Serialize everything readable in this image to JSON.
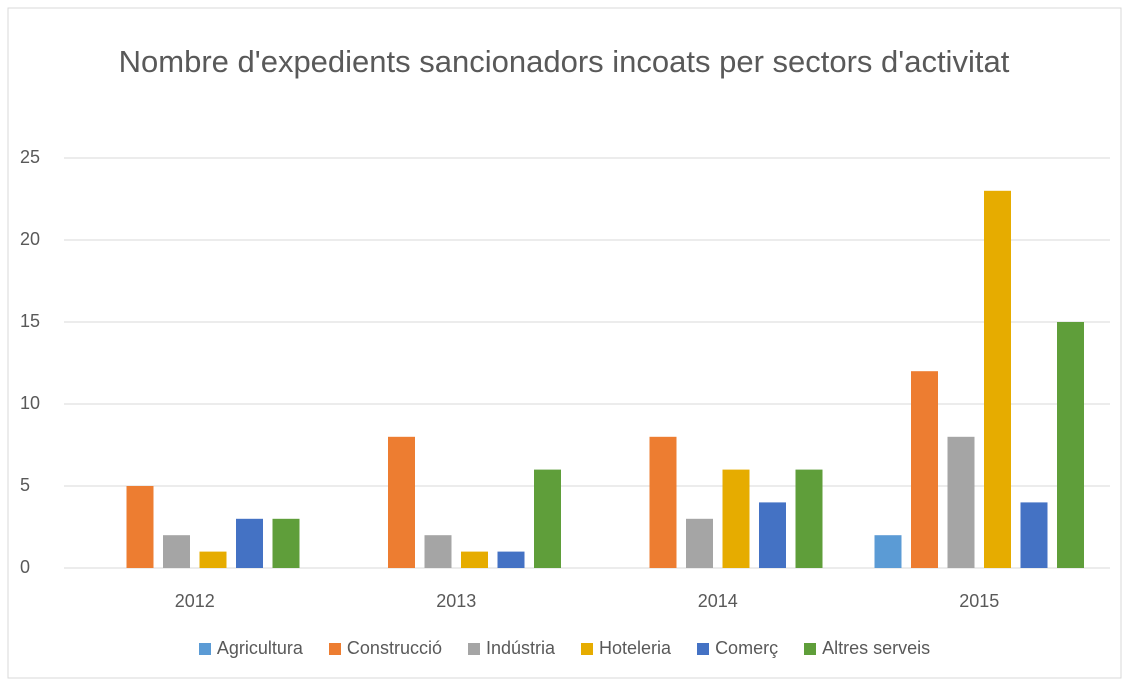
{
  "chart_data": {
    "type": "bar",
    "title": "Nombre d'expedients sancionadors incoats per sectors d'activitat",
    "categories": [
      "2012",
      "2013",
      "2014",
      "2015"
    ],
    "series": [
      {
        "name": "Agricultura",
        "color": "#5b9bd5",
        "values": [
          0,
          0,
          0,
          2
        ]
      },
      {
        "name": "Construcció",
        "color": "#ed7d31",
        "values": [
          5,
          8,
          8,
          12
        ]
      },
      {
        "name": "Indústria",
        "color": "#a5a5a5",
        "values": [
          2,
          2,
          3,
          8
        ]
      },
      {
        "name": "Hoteleria",
        "color": "#e6ac00",
        "values": [
          1,
          1,
          6,
          23
        ]
      },
      {
        "name": "Comerç",
        "color": "#4472c4",
        "values": [
          3,
          1,
          4,
          4
        ]
      },
      {
        "name": "Altres serveis",
        "color": "#5f9e3a",
        "values": [
          3,
          6,
          6,
          15
        ]
      }
    ],
    "ylim": [
      0,
      25
    ],
    "yticks": [
      0,
      5,
      10,
      15,
      20,
      25
    ],
    "grid": true,
    "legend": "bottom"
  }
}
